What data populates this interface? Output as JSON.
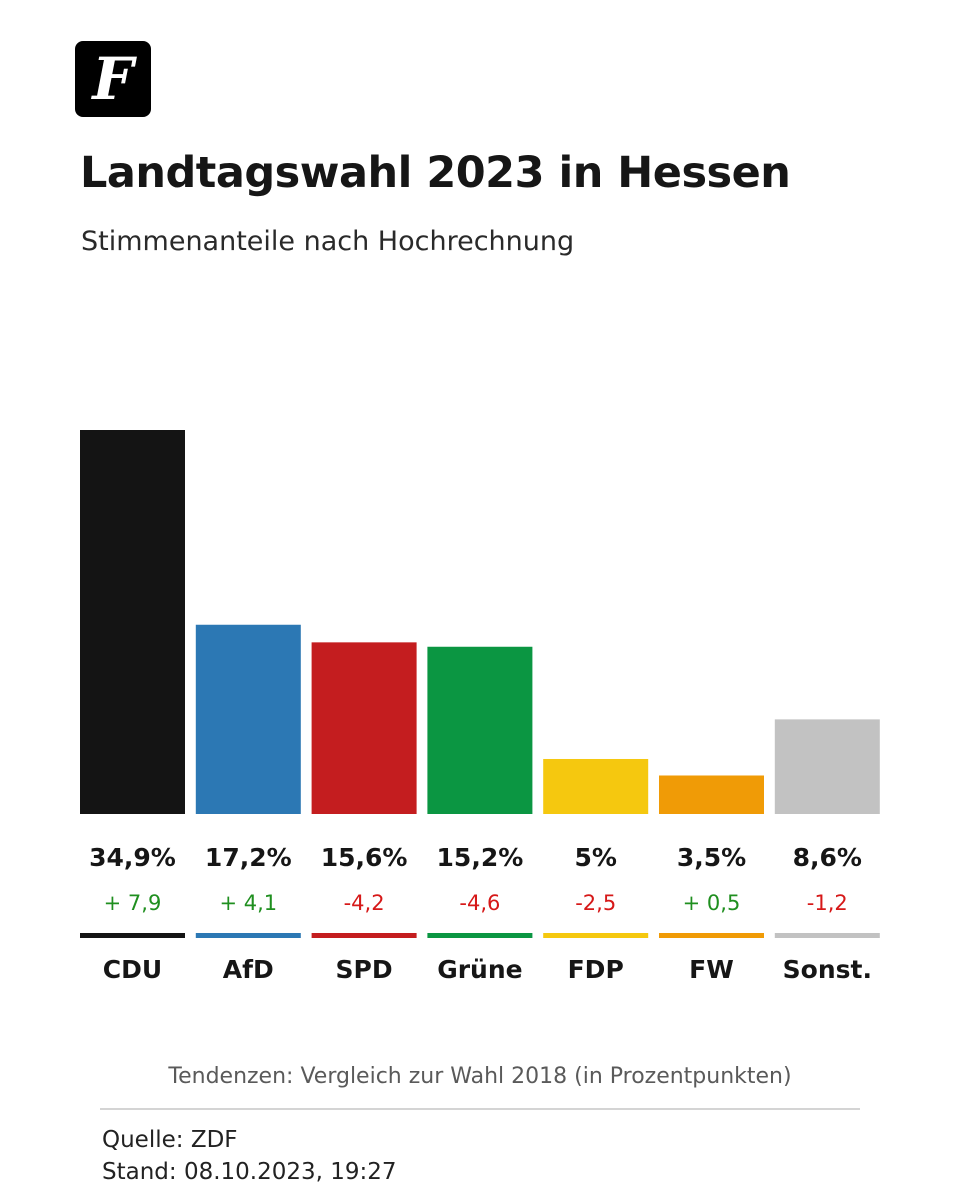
{
  "logo": {
    "letter": "F"
  },
  "header": {
    "title": "Landtagswahl 2023 in Hessen",
    "subtitle": "Stimmenanteile nach Hochrechnung"
  },
  "chart_data": {
    "type": "bar",
    "title": "Landtagswahl 2023 in Hessen",
    "subtitle": "Stimmenanteile nach Hochrechnung",
    "categories": [
      "CDU",
      "AfD",
      "SPD",
      "Grüne",
      "FDP",
      "FW",
      "Sonst."
    ],
    "values": [
      34.9,
      17.2,
      15.6,
      15.2,
      5,
      3.5,
      8.6
    ],
    "value_labels": [
      "34,9%",
      "17,2%",
      "15,6%",
      "15,2%",
      "5%",
      "3,5%",
      "8,6%"
    ],
    "changes": [
      7.9,
      4.1,
      -4.2,
      -4.6,
      -2.5,
      0.5,
      -1.2
    ],
    "change_labels": [
      "+ 7,9",
      "+ 4,1",
      "-4,2",
      "-4,6",
      "-2,5",
      "+ 0,5",
      "-1,2"
    ],
    "colors": [
      "#141414",
      "#2c78b4",
      "#c41d1f",
      "#0b9642",
      "#f5c80f",
      "#f09b06",
      "#c2c2c2"
    ],
    "positive_color": "#1f8f1f",
    "negative_color": "#d61818",
    "ylim": [
      0,
      34.9
    ],
    "grid": false,
    "legend": "none"
  },
  "footer": {
    "note": "Tendenzen: Vergleich zur Wahl 2018 (in Prozentpunkten)",
    "source": "Quelle: ZDF",
    "timestamp": "Stand: 08.10.2023, 19:27"
  }
}
